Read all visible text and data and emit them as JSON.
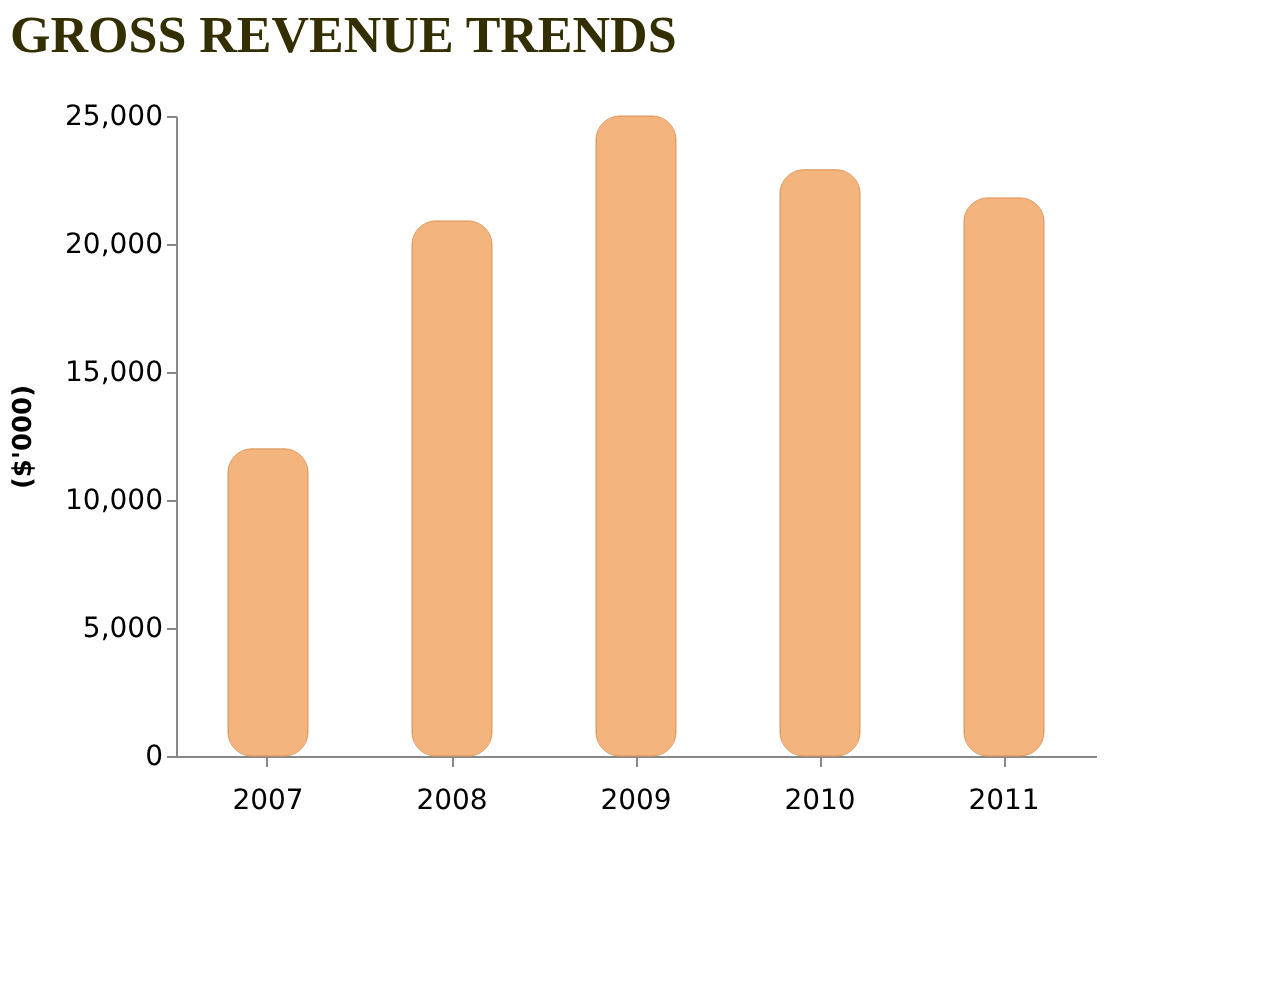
{
  "chart_data": {
    "type": "bar",
    "title": "GROSS REVENUE  TRENDS",
    "ylabel": "($'000)",
    "categories": [
      "2007",
      "2008",
      "2009",
      "2010",
      "2011"
    ],
    "values": [
      12000,
      20900,
      25000,
      22900,
      21800
    ],
    "color": "#f4b47e",
    "ylim": [
      0,
      25000
    ],
    "yticks": [
      0,
      {
        "value": 5000,
        "label": "5,000"
      },
      {
        "value": 10000,
        "label": "10,000"
      },
      {
        "value": 15000,
        "label": "15,000"
      },
      {
        "value": 20000,
        "label": "20,000"
      },
      {
        "value": 25000,
        "label": "25,000"
      }
    ],
    "grid": false
  }
}
